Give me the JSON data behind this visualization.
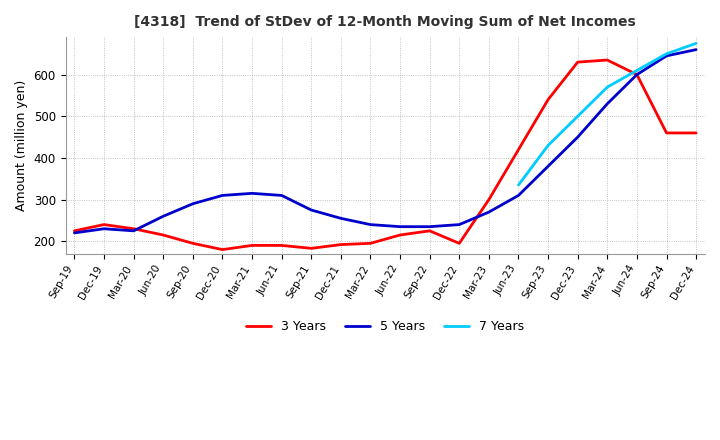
{
  "title": "[4318]  Trend of StDev of 12-Month Moving Sum of Net Incomes",
  "ylabel": "Amount (million yen)",
  "background_color": "#ffffff",
  "grid_color": "#aaaaaa",
  "x_labels": [
    "Sep-19",
    "Dec-19",
    "Mar-20",
    "Jun-20",
    "Sep-20",
    "Dec-20",
    "Mar-21",
    "Jun-21",
    "Sep-21",
    "Dec-21",
    "Mar-22",
    "Jun-22",
    "Sep-22",
    "Dec-22",
    "Mar-23",
    "Jun-23",
    "Sep-23",
    "Dec-23",
    "Mar-24",
    "Jun-24",
    "Sep-24",
    "Dec-24"
  ],
  "series": {
    "3 Years": {
      "color": "#ff0000",
      "values": [
        225,
        240,
        230,
        215,
        195,
        180,
        190,
        190,
        183,
        192,
        195,
        215,
        225,
        195,
        300,
        420,
        540,
        630,
        635,
        600,
        460,
        460
      ]
    },
    "5 Years": {
      "color": "#0000cc",
      "values": [
        220,
        230,
        225,
        260,
        290,
        310,
        315,
        310,
        275,
        255,
        240,
        235,
        235,
        240,
        270,
        310,
        380,
        450,
        530,
        600,
        645,
        660
      ]
    },
    "7 Years": {
      "color": "#00ccff",
      "values": [
        null,
        null,
        null,
        null,
        null,
        null,
        null,
        null,
        null,
        null,
        null,
        null,
        null,
        null,
        null,
        335,
        430,
        500,
        570,
        610,
        650,
        675
      ]
    },
    "10 Years": {
      "color": "#008000",
      "values": [
        null,
        null,
        null,
        null,
        null,
        null,
        null,
        null,
        null,
        null,
        null,
        null,
        null,
        null,
        null,
        null,
        null,
        null,
        null,
        null,
        null,
        null
      ]
    }
  },
  "ylim": [
    170,
    690
  ],
  "yticks": [
    200,
    300,
    400,
    500,
    600
  ]
}
